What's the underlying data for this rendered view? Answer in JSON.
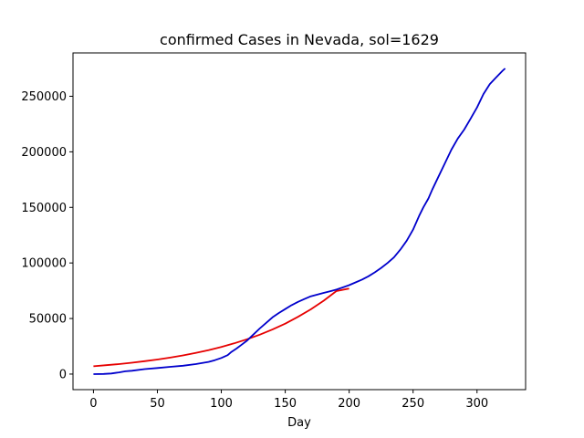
{
  "chart_data": {
    "type": "line",
    "title": "confirmed Cases in Nevada, sol=1629",
    "xlabel": "Day",
    "ylabel": "",
    "xlim": [
      -16,
      338
    ],
    "ylim": [
      -14000,
      289000
    ],
    "xticks": [
      0,
      50,
      100,
      150,
      200,
      250,
      300
    ],
    "yticks": [
      0,
      50000,
      100000,
      150000,
      200000,
      250000
    ],
    "grid": false,
    "series": [
      {
        "color": "#e60000",
        "x": [
          0,
          10,
          20,
          30,
          40,
          50,
          60,
          70,
          80,
          90,
          100,
          110,
          120,
          130,
          140,
          150,
          160,
          170,
          180,
          190,
          200
        ],
        "y": [
          7000,
          8000,
          9000,
          10200,
          11600,
          13100,
          14800,
          16800,
          19000,
          21500,
          24400,
          27600,
          31300,
          35400,
          40100,
          45400,
          51500,
          58300,
          66000,
          74700,
          77000
        ]
      },
      {
        "color": "#0000cc",
        "x": [
          0,
          8,
          14,
          20,
          25,
          30,
          40,
          50,
          60,
          70,
          80,
          90,
          95,
          100,
          105,
          108,
          112,
          116,
          120,
          125,
          130,
          135,
          140,
          145,
          150,
          155,
          160,
          165,
          170,
          175,
          180,
          185,
          190,
          195,
          200,
          205,
          210,
          215,
          220,
          225,
          230,
          235,
          240,
          245,
          250,
          255,
          258,
          262,
          265,
          270,
          275,
          280,
          285,
          290,
          295,
          300,
          305,
          310,
          315,
          320,
          322
        ],
        "y": [
          0,
          100,
          500,
          1500,
          2500,
          3000,
          4500,
          5500,
          6500,
          7500,
          9000,
          11000,
          12500,
          14500,
          17000,
          20000,
          23000,
          26500,
          30000,
          35500,
          41000,
          46000,
          51000,
          55000,
          58500,
          62000,
          65000,
          67500,
          70000,
          71500,
          73000,
          74500,
          76000,
          78000,
          80000,
          82500,
          85000,
          88000,
          91500,
          95500,
          100000,
          105000,
          112000,
          120000,
          130000,
          143000,
          150000,
          158000,
          166000,
          178000,
          190000,
          202000,
          212000,
          220000,
          230000,
          240000,
          252000,
          261000,
          267000,
          273000,
          275000
        ]
      }
    ]
  }
}
